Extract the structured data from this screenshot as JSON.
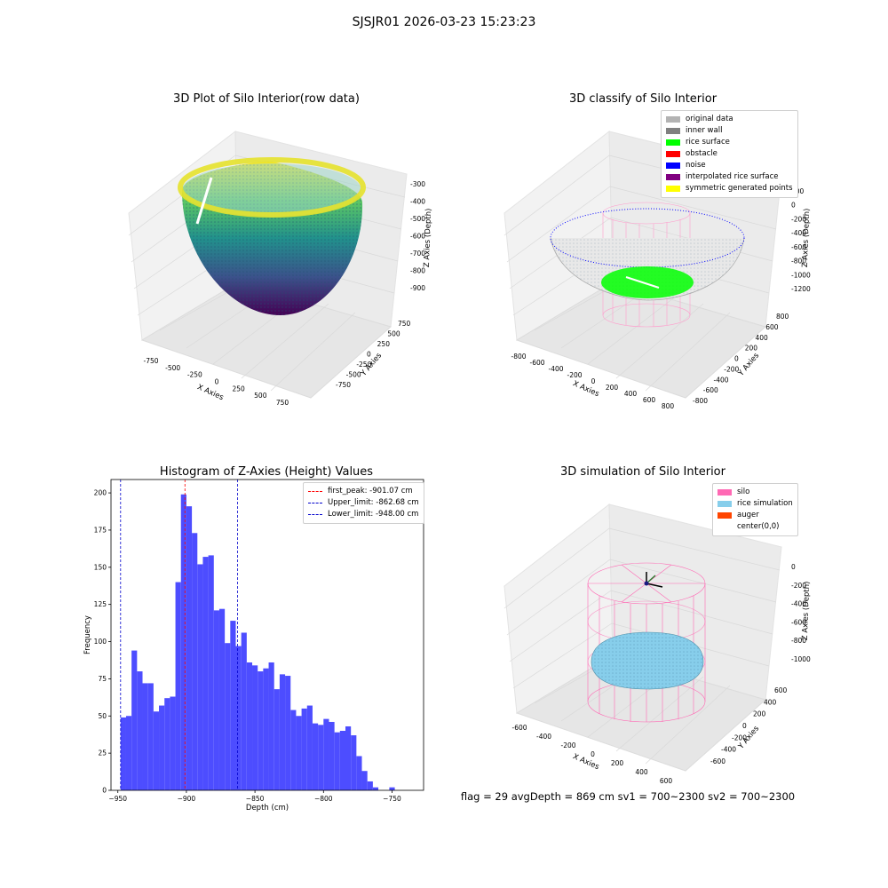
{
  "figure": {
    "suptitle": "SJSJR01 2026-03-23 15:23:23",
    "status_text": "flag = 29  avgDepth = 869 cm  sv1 = 700~2300  sv2 = 700~2300"
  },
  "panels": {
    "raw": {
      "title": "3D Plot of Silo Interior(row data)",
      "xlabel": "X Axies",
      "ylabel": "Y Axies",
      "zlabel": "Z Axies (Depth)",
      "xticks": [
        "-750",
        "-500",
        "-250",
        "0",
        "250",
        "500",
        "750"
      ],
      "yticks": [
        "-750",
        "-500",
        "-250",
        "0",
        "250",
        "500",
        "750"
      ],
      "zticks": [
        "-300",
        "-400",
        "-500",
        "-600",
        "-700",
        "-800",
        "-900"
      ]
    },
    "classify": {
      "title": "3D classify of Silo Interior",
      "xlabel": "X Axies",
      "ylabel": "Y Axies",
      "zlabel": "Z Axies (Depth)",
      "xticks": [
        "-800",
        "-600",
        "-400",
        "-200",
        "0",
        "200",
        "400",
        "600",
        "800"
      ],
      "yticks": [
        "-800",
        "-600",
        "-400",
        "-200",
        "0",
        "200",
        "400",
        "600",
        "800"
      ],
      "zticks": [
        "200",
        "0",
        "-200",
        "-400",
        "-600",
        "-800",
        "-1000",
        "-1200"
      ],
      "legend": [
        {
          "label": "original data",
          "color": "#b3b3b3"
        },
        {
          "label": "inner wall",
          "color": "#808080"
        },
        {
          "label": "rice surface",
          "color": "#00ff00"
        },
        {
          "label": "obstacle",
          "color": "#ff0000"
        },
        {
          "label": "noise",
          "color": "#0000ff"
        },
        {
          "label": "interpolated rice surface",
          "color": "#800080"
        },
        {
          "label": "symmetric generated points",
          "color": "#ffff00"
        }
      ]
    },
    "simulation": {
      "title": "3D simulation of Silo Interior",
      "xlabel": "X Axies",
      "ylabel": "Y Axies",
      "zlabel": "Z Axies (Depth)",
      "xticks": [
        "-600",
        "-400",
        "-200",
        "0",
        "200",
        "400",
        "600"
      ],
      "yticks": [
        "-600",
        "-400",
        "-200",
        "0",
        "200",
        "400",
        "600"
      ],
      "zticks": [
        "0",
        "-200",
        "-400",
        "-600",
        "-800",
        "-1000"
      ],
      "legend": [
        {
          "label": "silo",
          "color": "#ff69b4"
        },
        {
          "label": "rice simulation",
          "color": "#87ceeb"
        },
        {
          "label": "auger",
          "color": "#ff4500"
        },
        {
          "label": "center(0,0)",
          "color": ""
        }
      ]
    }
  },
  "chart_data": {
    "type": "bar",
    "title": "Histogram of Z-Axies (Height) Values",
    "xlabel": "Depth (cm)",
    "ylabel": "Frequency",
    "xlim": [
      -955,
      -727
    ],
    "ylim": [
      0,
      209
    ],
    "xticks": [
      -950,
      -900,
      -850,
      -800,
      -750
    ],
    "yticks": [
      0,
      25,
      50,
      75,
      100,
      125,
      150,
      175,
      200
    ],
    "bin_start": -948.0,
    "bin_width": 4.0,
    "values": [
      49,
      50,
      94,
      80,
      72,
      72,
      53,
      57,
      62,
      63,
      140,
      199,
      191,
      173,
      152,
      157,
      158,
      121,
      122,
      99,
      114,
      97,
      106,
      86,
      84,
      80,
      82,
      86,
      68,
      78,
      77,
      54,
      50,
      55,
      57,
      45,
      44,
      48,
      46,
      39,
      40,
      43,
      37,
      23,
      13,
      6,
      2,
      0,
      0,
      2
    ],
    "reference_lines": [
      {
        "label": "first_peak: -901.07 cm",
        "value": -901.07,
        "color": "#ff0000"
      },
      {
        "label": "Upper_limit: -862.68 cm",
        "value": -862.68,
        "color": "#0000cc"
      },
      {
        "label": "Lower_limit: -948.00 cm",
        "value": -948.0,
        "color": "#0000cc"
      }
    ],
    "bar_color": "#4d4dff",
    "legend_position": "upper right"
  }
}
